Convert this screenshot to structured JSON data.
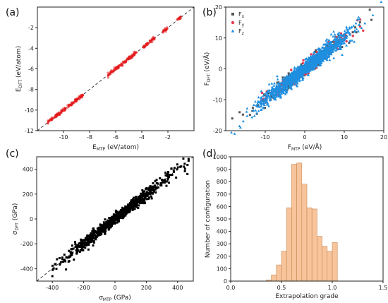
{
  "chart_data": [
    {
      "panel_label": "(a)",
      "type": "scatter",
      "xlabel_main": "E",
      "xlabel_sub": "MTP",
      "xlabel_unit": " (eV/atom)",
      "ylabel_main": "E",
      "ylabel_sub": "DFT",
      "ylabel_unit": " (eV/atom)",
      "xlim": [
        -12,
        0
      ],
      "ylim": [
        -12,
        0
      ],
      "xticks": [
        -10,
        -8,
        -6,
        -4,
        -2
      ],
      "yticks": [
        -12,
        -10,
        -8,
        -6,
        -4,
        -2
      ],
      "diagonal": true,
      "segments": [
        [
          -11.2,
          -8.5
        ],
        [
          -6.6,
          -4.4
        ],
        [
          -3.9,
          -3.0
        ],
        [
          -2.4,
          -2.0
        ],
        [
          -1.3,
          -1.0
        ]
      ],
      "color": "#e41a1c"
    },
    {
      "panel_label": "(b)",
      "type": "scatter",
      "xlabel_main": "F",
      "xlabel_sub": "MTP",
      "xlabel_unit": " (eV/Å)",
      "ylabel_main": "F",
      "ylabel_sub": "DFT",
      "ylabel_unit": " (eV/Å)",
      "xlim": [
        -20,
        20
      ],
      "ylim": [
        -20,
        20
      ],
      "xticks": [
        -10,
        0,
        10,
        20
      ],
      "yticks": [
        -20,
        -10,
        0,
        10,
        20
      ],
      "diagonal": false,
      "legend_position": "top-left",
      "series": [
        {
          "name_main": "F",
          "name_sub": "x",
          "color": "#555555",
          "marker": "square"
        },
        {
          "name_main": "F",
          "name_sub": "y",
          "color": "#e8384f",
          "marker": "circle"
        },
        {
          "name_main": "F",
          "name_sub": "z",
          "color": "#1f8fe0",
          "marker": "triangle"
        }
      ],
      "range": [
        -19,
        19.5
      ]
    },
    {
      "panel_label": "(c)",
      "type": "scatter",
      "xlabel_main": "σ",
      "xlabel_sub": "MTP",
      "xlabel_unit": " (GPa)",
      "ylabel_main": "σ",
      "ylabel_sub": "DFT",
      "ylabel_unit": " (GPa)",
      "xlim": [
        -500,
        500
      ],
      "ylim": [
        -500,
        500
      ],
      "xticks": [
        -400,
        -200,
        0,
        200,
        400
      ],
      "yticks": [
        -400,
        -200,
        0,
        200,
        400
      ],
      "diagonal": true,
      "range": [
        -400,
        470
      ],
      "color": "#000000"
    },
    {
      "panel_label": "(d)",
      "type": "bar",
      "xlabel": "Extrapolation grade",
      "ylabel": "Number of configuration",
      "xlim": [
        0,
        1.5
      ],
      "ylim": [
        0,
        1000
      ],
      "xticks": [
        0.0,
        0.5,
        1.0,
        1.5
      ],
      "yticks": [
        0,
        100,
        200,
        300,
        400,
        500,
        600,
        700,
        800,
        900,
        1000
      ],
      "bin_width": 0.05,
      "bins": [
        {
          "x": 0.35,
          "value": 10
        },
        {
          "x": 0.4,
          "value": 50
        },
        {
          "x": 0.45,
          "value": 130
        },
        {
          "x": 0.5,
          "value": 240
        },
        {
          "x": 0.55,
          "value": 590
        },
        {
          "x": 0.6,
          "value": 940
        },
        {
          "x": 0.65,
          "value": 950
        },
        {
          "x": 0.7,
          "value": 780
        },
        {
          "x": 0.75,
          "value": 590
        },
        {
          "x": 0.8,
          "value": 580
        },
        {
          "x": 0.85,
          "value": 360
        },
        {
          "x": 0.9,
          "value": 280
        },
        {
          "x": 0.95,
          "value": 240
        },
        {
          "x": 1.0,
          "value": 310
        }
      ],
      "color": "#f7c49b",
      "edge": "#c98a55"
    }
  ]
}
